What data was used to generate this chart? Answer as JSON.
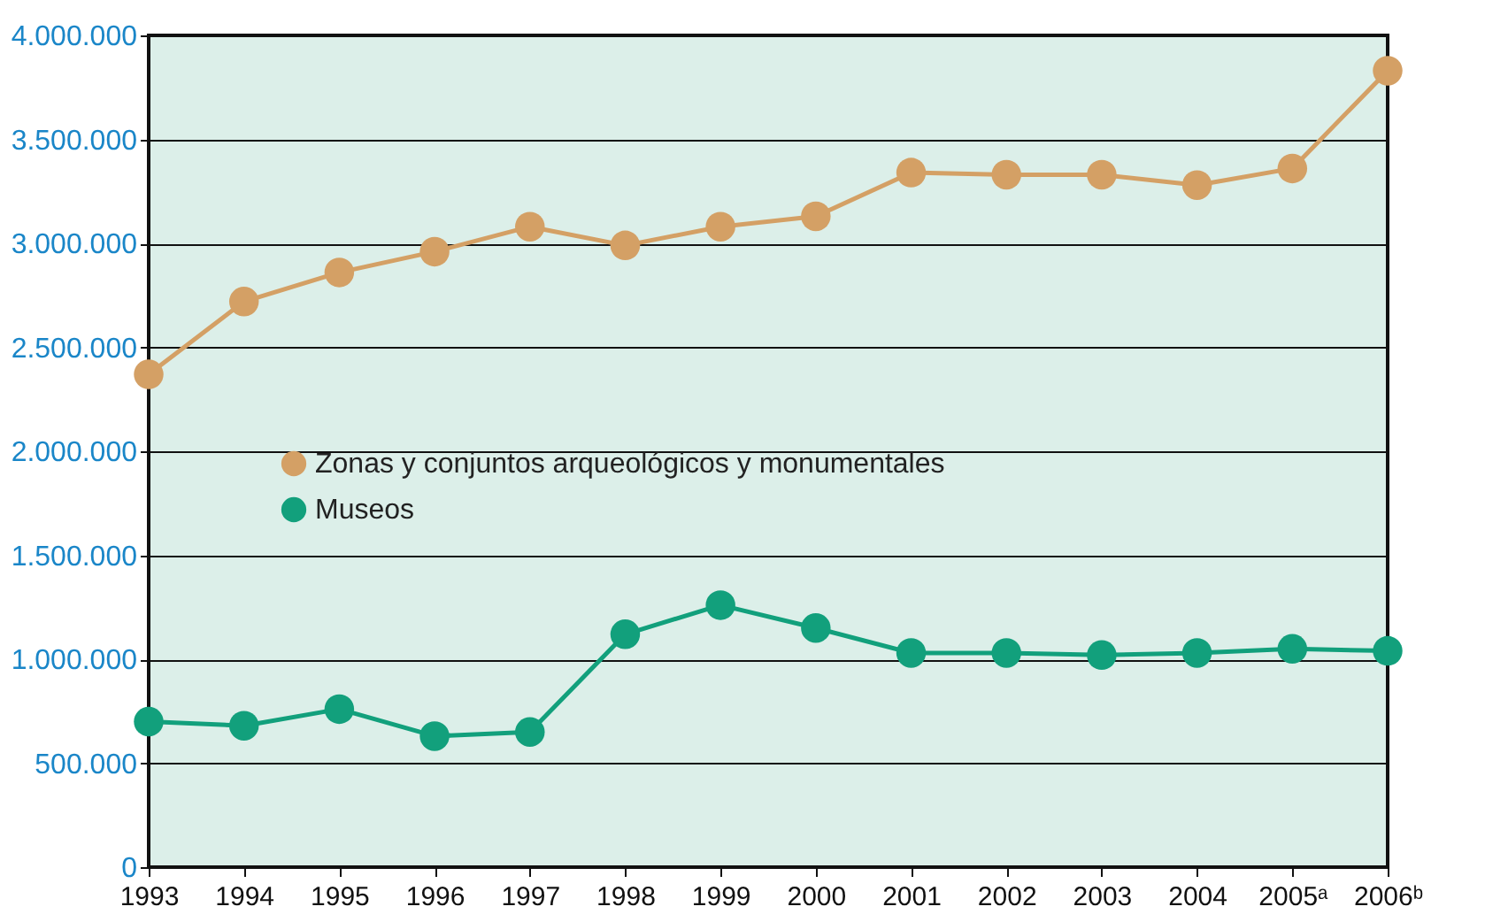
{
  "chart_data": {
    "type": "line",
    "categories": [
      "1993",
      "1994",
      "1995",
      "1996",
      "1997",
      "1998",
      "1999",
      "2000",
      "2001",
      "2002",
      "2003",
      "2004",
      "2005ᵃ",
      "2006ᵇ"
    ],
    "series": [
      {
        "name": "Zonas y conjuntos arqueológicos y monumentales",
        "color": "#d4a065",
        "values": [
          2370000,
          2720000,
          2860000,
          2960000,
          3080000,
          2990000,
          3080000,
          3130000,
          3340000,
          3330000,
          3330000,
          3280000,
          3360000,
          3830000
        ]
      },
      {
        "name": "Museos",
        "color": "#12a07c",
        "values": [
          700000,
          680000,
          760000,
          630000,
          650000,
          1120000,
          1260000,
          1150000,
          1030000,
          1030000,
          1020000,
          1030000,
          1050000,
          1040000
        ]
      }
    ],
    "ylim": [
      0,
      4000000
    ],
    "yticks": [
      {
        "value": 0,
        "label": "0"
      },
      {
        "value": 500000,
        "label": "500.000"
      },
      {
        "value": 1000000,
        "label": "1.000.000"
      },
      {
        "value": 1500000,
        "label": "1.500.000"
      },
      {
        "value": 2000000,
        "label": "2.000.000"
      },
      {
        "value": 2500000,
        "label": "2.500.000"
      },
      {
        "value": 3000000,
        "label": "3.000.000"
      },
      {
        "value": 3500000,
        "label": "3.500.000"
      },
      {
        "value": 4000000,
        "label": "4.000.000"
      }
    ],
    "grid": "y",
    "legend": "left",
    "marker": "circle",
    "line_style": "solid"
  }
}
